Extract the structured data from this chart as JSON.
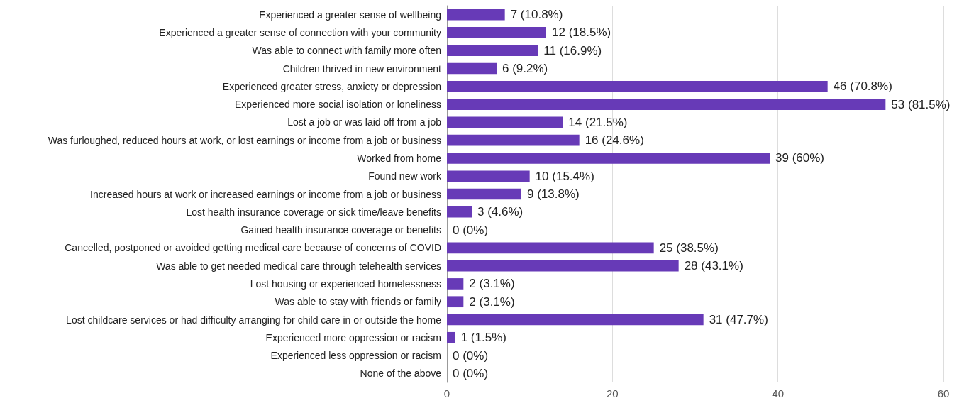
{
  "chart_data": {
    "type": "bar",
    "orientation": "horizontal",
    "categories": [
      "Experienced a greater sense of wellbeing",
      "Experienced a greater sense of connection with your community",
      "Was able to connect with family more often",
      "Children thrived in new environment",
      "Experienced greater stress, anxiety or depression",
      "Experienced more social isolation or loneliness",
      "Lost a job or was laid off from a job",
      "Was furloughed, reduced hours at work, or lost earnings or income from a job or business",
      "Worked from home",
      "Found new work",
      "Increased hours at work or increased earnings or income from a job or business",
      "Lost health insurance coverage or sick time/leave benefits",
      "Gained health insurance coverage or benefits",
      "Cancelled, postponed or avoided getting medical care because of concerns of COVID",
      "Was able to get needed medical care through telehealth services",
      "Lost housing or experienced homelessness",
      "Was able to stay with friends or family",
      "Lost childcare services or had difficulty arranging for child care in or outside the home",
      "Experienced more oppression or racism",
      "Experienced less oppression or racism",
      "None of the above"
    ],
    "values": [
      7,
      12,
      11,
      6,
      46,
      53,
      14,
      16,
      39,
      10,
      9,
      3,
      0,
      25,
      28,
      2,
      2,
      31,
      1,
      0,
      0
    ],
    "value_labels": [
      "7 (10.8%)",
      "12 (18.5%)",
      "11 (16.9%)",
      "6 (9.2%)",
      "46 (70.8%)",
      "53 (81.5%)",
      "14 (21.5%)",
      "16 (24.6%)",
      "39 (60%)",
      "10 (15.4%)",
      "9 (13.8%)",
      "3 (4.6%)",
      "0 (0%)",
      "25 (38.5%)",
      "28 (43.1%)",
      "2 (3.1%)",
      "2 (3.1%)",
      "31 (47.7%)",
      "1 (1.5%)",
      "0 (0%)",
      "0 (0%)"
    ],
    "color": "#673ab7",
    "xlim": [
      0,
      60
    ],
    "xticks": [
      0,
      20,
      40,
      60
    ],
    "grid": "x"
  }
}
